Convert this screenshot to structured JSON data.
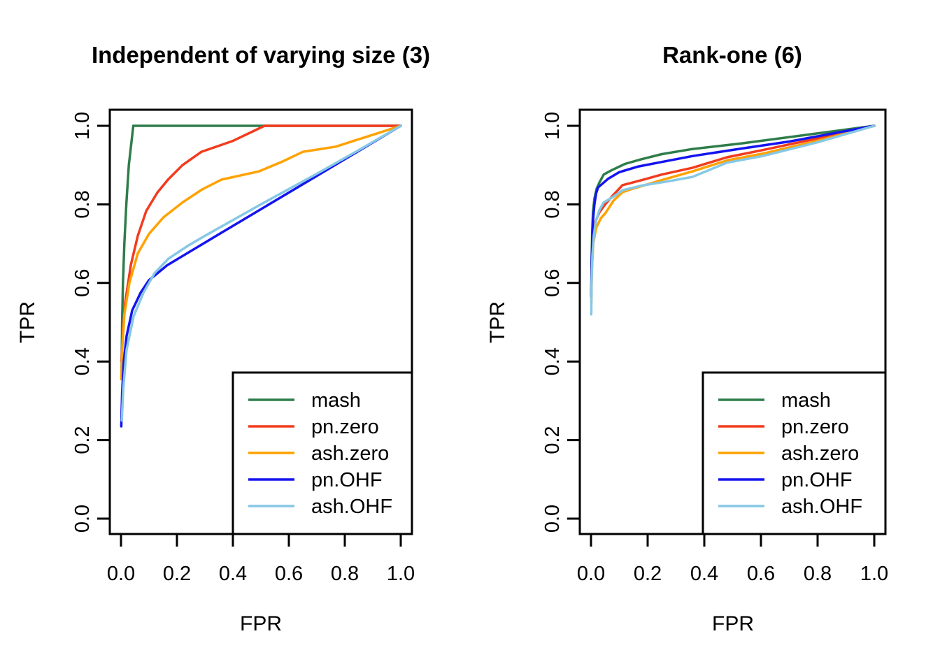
{
  "figure": {
    "background": "#ffffff",
    "text_color": "#000000"
  },
  "chart_data": [
    {
      "type": "line",
      "title": "Independent of varying size (3)",
      "xlabel": "FPR",
      "ylabel": "TPR",
      "xlim": [
        0,
        1
      ],
      "ylim": [
        0,
        1
      ],
      "grid": false,
      "x_tick_labels": [
        "0.0",
        "0.2",
        "0.4",
        "0.6",
        "0.8",
        "1.0"
      ],
      "y_tick_labels": [
        "0.0",
        "0.2",
        "0.4",
        "0.6",
        "0.8",
        "1.0"
      ],
      "legend": {
        "position": "bottomright",
        "entries": [
          "mash",
          "pn.zero",
          "ash.zero",
          "pn.OHF",
          "ash.OHF"
        ]
      },
      "series": [
        {
          "name": "mash",
          "color": "#2e7d4a",
          "points": [
            [
              0.002,
              0.36
            ],
            [
              0.004,
              0.5
            ],
            [
              0.007,
              0.6
            ],
            [
              0.012,
              0.7
            ],
            [
              0.019,
              0.8
            ],
            [
              0.028,
              0.9
            ],
            [
              0.044,
              1.0
            ],
            [
              1.0,
              1.0
            ]
          ]
        },
        {
          "name": "pn.zero",
          "color": "#f23b1e",
          "points": [
            [
              0.002,
              0.4
            ],
            [
              0.006,
              0.47
            ],
            [
              0.015,
              0.55
            ],
            [
              0.035,
              0.645
            ],
            [
              0.06,
              0.72
            ],
            [
              0.09,
              0.783
            ],
            [
              0.13,
              0.83
            ],
            [
              0.168,
              0.863
            ],
            [
              0.22,
              0.9
            ],
            [
              0.288,
              0.934
            ],
            [
              0.398,
              0.961
            ],
            [
              0.513,
              1.0
            ],
            [
              1.0,
              1.0
            ]
          ]
        },
        {
          "name": "ash.zero",
          "color": "#ffa200",
          "points": [
            [
              0.001,
              0.355
            ],
            [
              0.005,
              0.44
            ],
            [
              0.012,
              0.52
            ],
            [
              0.03,
              0.6
            ],
            [
              0.06,
              0.675
            ],
            [
              0.1,
              0.725
            ],
            [
              0.152,
              0.767
            ],
            [
              0.22,
              0.805
            ],
            [
              0.29,
              0.838
            ],
            [
              0.359,
              0.863
            ],
            [
              0.493,
              0.884
            ],
            [
              0.58,
              0.91
            ],
            [
              0.651,
              0.934
            ],
            [
              0.768,
              0.947
            ],
            [
              0.868,
              0.97
            ],
            [
              1.0,
              1.0
            ]
          ]
        },
        {
          "name": "pn.OHF",
          "color": "#1414f0",
          "points": [
            [
              0.001,
              0.235
            ],
            [
              0.004,
              0.32
            ],
            [
              0.01,
              0.4
            ],
            [
              0.02,
              0.465
            ],
            [
              0.04,
              0.53
            ],
            [
              0.07,
              0.575
            ],
            [
              0.1,
              0.607
            ],
            [
              0.165,
              0.645
            ],
            [
              0.35,
              0.724
            ],
            [
              0.6,
              0.83
            ],
            [
              0.8,
              0.915
            ],
            [
              1.0,
              1.0
            ]
          ]
        },
        {
          "name": "ash.OHF",
          "color": "#86c8e6",
          "points": [
            [
              0.003,
              0.25
            ],
            [
              0.008,
              0.33
            ],
            [
              0.02,
              0.43
            ],
            [
              0.045,
              0.515
            ],
            [
              0.08,
              0.575
            ],
            [
              0.12,
              0.625
            ],
            [
              0.17,
              0.662
            ],
            [
              0.24,
              0.695
            ],
            [
              0.3,
              0.72
            ],
            [
              0.5,
              0.8
            ],
            [
              0.7,
              0.878
            ],
            [
              0.85,
              0.938
            ],
            [
              1.0,
              1.0
            ]
          ]
        }
      ]
    },
    {
      "type": "line",
      "title": "Rank-one (6)",
      "xlabel": "FPR",
      "ylabel": "TPR",
      "xlim": [
        0,
        1
      ],
      "ylim": [
        0,
        1
      ],
      "grid": false,
      "x_tick_labels": [
        "0.0",
        "0.2",
        "0.4",
        "0.6",
        "0.8",
        "1.0"
      ],
      "y_tick_labels": [
        "0.0",
        "0.2",
        "0.4",
        "0.6",
        "0.8",
        "1.0"
      ],
      "legend": {
        "position": "bottomright",
        "entries": [
          "mash",
          "pn.zero",
          "ash.zero",
          "pn.OHF",
          "ash.OHF"
        ]
      },
      "series": [
        {
          "name": "mash",
          "color": "#2e7d4a",
          "points": [
            [
              0.001,
              0.57
            ],
            [
              0.002,
              0.65
            ],
            [
              0.004,
              0.72
            ],
            [
              0.007,
              0.78
            ],
            [
              0.012,
              0.815
            ],
            [
              0.02,
              0.84
            ],
            [
              0.03,
              0.856
            ],
            [
              0.045,
              0.876
            ],
            [
              0.07,
              0.886
            ],
            [
              0.12,
              0.903
            ],
            [
              0.178,
              0.915
            ],
            [
              0.25,
              0.928
            ],
            [
              0.358,
              0.941
            ],
            [
              0.53,
              0.955
            ],
            [
              0.75,
              0.976
            ],
            [
              1.0,
              1.0
            ]
          ]
        },
        {
          "name": "pn.zero",
          "color": "#f23b1e",
          "points": [
            [
              0.001,
              0.57
            ],
            [
              0.003,
              0.65
            ],
            [
              0.007,
              0.71
            ],
            [
              0.015,
              0.755
            ],
            [
              0.03,
              0.78
            ],
            [
              0.05,
              0.8
            ],
            [
              0.08,
              0.825
            ],
            [
              0.111,
              0.849
            ],
            [
              0.18,
              0.862
            ],
            [
              0.25,
              0.876
            ],
            [
              0.358,
              0.893
            ],
            [
              0.48,
              0.92
            ],
            [
              0.605,
              0.938
            ],
            [
              0.8,
              0.968
            ],
            [
              1.0,
              1.0
            ]
          ]
        },
        {
          "name": "ash.zero",
          "color": "#ffa200",
          "points": [
            [
              0.001,
              0.55
            ],
            [
              0.003,
              0.63
            ],
            [
              0.008,
              0.7
            ],
            [
              0.018,
              0.74
            ],
            [
              0.035,
              0.765
            ],
            [
              0.05,
              0.777
            ],
            [
              0.08,
              0.81
            ],
            [
              0.111,
              0.831
            ],
            [
              0.148,
              0.84
            ],
            [
              0.25,
              0.862
            ],
            [
              0.358,
              0.884
            ],
            [
              0.48,
              0.912
            ],
            [
              0.605,
              0.929
            ],
            [
              0.8,
              0.962
            ],
            [
              1.0,
              1.0
            ]
          ]
        },
        {
          "name": "pn.OHF",
          "color": "#1414f0",
          "points": [
            [
              0.001,
              0.565
            ],
            [
              0.003,
              0.67
            ],
            [
              0.006,
              0.75
            ],
            [
              0.012,
              0.8
            ],
            [
              0.018,
              0.828
            ],
            [
              0.025,
              0.843
            ],
            [
              0.06,
              0.865
            ],
            [
              0.1,
              0.882
            ],
            [
              0.165,
              0.896
            ],
            [
              0.25,
              0.908
            ],
            [
              0.358,
              0.923
            ],
            [
              0.53,
              0.942
            ],
            [
              0.7,
              0.96
            ],
            [
              0.85,
              0.98
            ],
            [
              1.0,
              1.0
            ]
          ]
        },
        {
          "name": "ash.OHF",
          "color": "#86c8e6",
          "points": [
            [
              0.001,
              0.52
            ],
            [
              0.002,
              0.6
            ],
            [
              0.005,
              0.67
            ],
            [
              0.01,
              0.72
            ],
            [
              0.017,
              0.757
            ],
            [
              0.03,
              0.786
            ],
            [
              0.045,
              0.805
            ],
            [
              0.08,
              0.82
            ],
            [
              0.111,
              0.836
            ],
            [
              0.18,
              0.848
            ],
            [
              0.267,
              0.858
            ],
            [
              0.358,
              0.87
            ],
            [
              0.48,
              0.906
            ],
            [
              0.605,
              0.923
            ],
            [
              0.8,
              0.958
            ],
            [
              1.0,
              1.0
            ]
          ]
        }
      ]
    }
  ]
}
